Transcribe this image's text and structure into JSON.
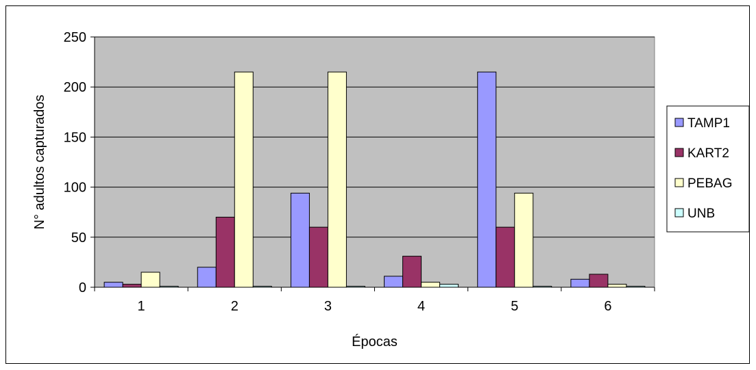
{
  "chart_data": {
    "type": "bar",
    "title": "",
    "xlabel": "Épocas",
    "ylabel": "N° adultos capturados",
    "categories": [
      "1",
      "2",
      "3",
      "4",
      "5",
      "6"
    ],
    "ylim": [
      0,
      250
    ],
    "yticks": [
      0,
      50,
      100,
      150,
      200,
      250
    ],
    "grid": true,
    "legend_position": "right",
    "series": [
      {
        "name": "TAMP1",
        "color": "#9999FF",
        "values": [
          5,
          20,
          94,
          11,
          215,
          8
        ]
      },
      {
        "name": "KART2",
        "color": "#993366",
        "values": [
          3,
          70,
          60,
          31,
          60,
          13
        ]
      },
      {
        "name": "PEBAG",
        "color": "#FFFFCC",
        "values": [
          15,
          215,
          215,
          5,
          94,
          3
        ]
      },
      {
        "name": "UNB",
        "color": "#CCFFFF",
        "values": [
          1,
          1,
          1,
          3,
          1,
          1
        ]
      }
    ],
    "plot_background": "#C0C0C0"
  }
}
